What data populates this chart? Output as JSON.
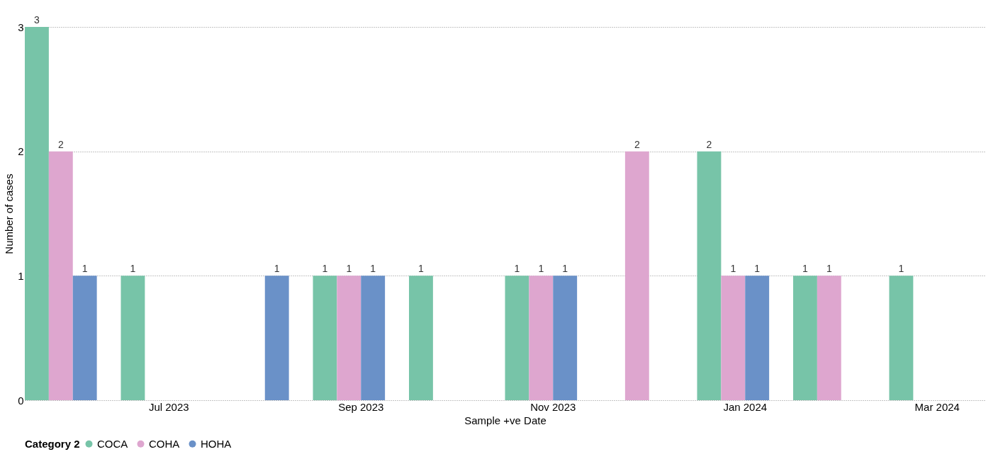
{
  "chart_data": {
    "type": "bar",
    "xlabel": "Sample +ve Date",
    "ylabel": "Number of cases",
    "legend_title": "Category 2",
    "legend": "bottom",
    "grid": "y",
    "data_labels": true,
    "categories": [
      null,
      "Jul 2023",
      null,
      "Sep 2023",
      null,
      "Nov 2023",
      null,
      "Jan 2024",
      null,
      "Mar 2024"
    ],
    "ylim": [
      0,
      3
    ],
    "yticks": [
      0,
      1,
      2,
      3
    ],
    "series": [
      {
        "name": "COCA",
        "color": "#77c4a8",
        "values": [
          3,
          1,
          null,
          1,
          1,
          1,
          null,
          2,
          1,
          1
        ]
      },
      {
        "name": "COHA",
        "color": "#dea6cf",
        "values": [
          2,
          null,
          null,
          1,
          null,
          1,
          2,
          1,
          1,
          null
        ]
      },
      {
        "name": "HOHA",
        "color": "#6a91c8",
        "values": [
          1,
          null,
          1,
          1,
          null,
          1,
          null,
          1,
          null,
          null
        ]
      }
    ]
  }
}
